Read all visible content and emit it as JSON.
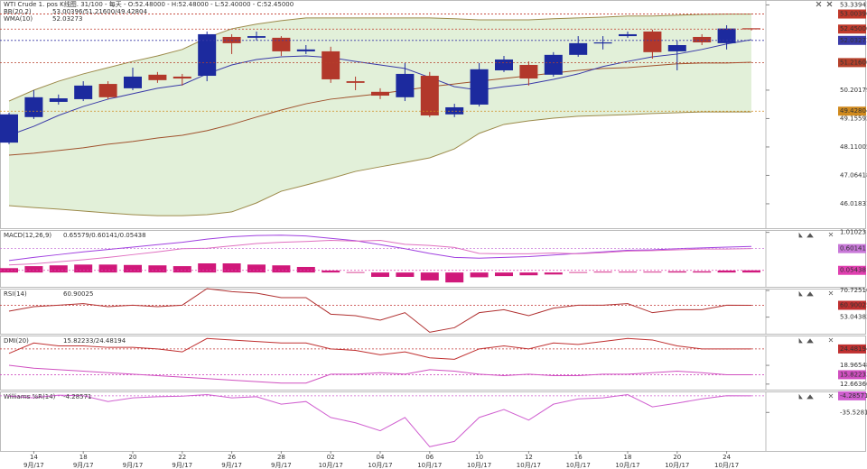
{
  "header": "WTI Crude 1. pos  K线图. 31/100 - 每天 - O:52.48000 - H:52.48000 - L:52.40000 - C:52.45000",
  "chart_data": [
    {
      "type": "candlestick",
      "categories": [
        null,
        "14",
        null,
        "18",
        null,
        "20",
        null,
        "22",
        null,
        "26",
        null,
        "28",
        null,
        "02",
        null,
        "04",
        null,
        "06",
        null,
        "10",
        null,
        "12",
        null,
        "16",
        null,
        "18",
        null,
        "20",
        null,
        "24",
        null
      ],
      "months": [
        null,
        "9月/17",
        null,
        "9月/17",
        null,
        "9月/17",
        null,
        "9月/17",
        null,
        "9月/17",
        null,
        "9月/17",
        null,
        "10月/17",
        null,
        "10月/17",
        null,
        "10月/17",
        null,
        "10月/17",
        null,
        "10月/17",
        null,
        "10月/17",
        null,
        "10月/17",
        null,
        "10月/17",
        null,
        "10月/17",
        null
      ],
      "open": [
        48.27,
        49.21,
        49.77,
        49.87,
        50.43,
        50.27,
        50.77,
        50.7,
        50.73,
        52.16,
        52.13,
        52.13,
        51.63,
        51.63,
        50.53,
        50.14,
        49.94,
        50.73,
        49.31,
        49.67,
        50.93,
        51.13,
        50.77,
        51.5,
        51.93,
        52.19,
        52.36,
        51.63,
        52.16,
        51.93,
        52.48
      ],
      "high": [
        49.37,
        50.2,
        50.04,
        50.53,
        50.53,
        51.03,
        50.87,
        50.8,
        52.36,
        52.26,
        52.36,
        52.19,
        51.86,
        51.8,
        50.7,
        50.27,
        51.2,
        50.87,
        49.7,
        51.2,
        51.46,
        51.26,
        51.6,
        52.19,
        52.19,
        52.36,
        52.43,
        52.03,
        52.26,
        52.59,
        52.48
      ],
      "low": [
        48.21,
        49.14,
        49.67,
        49.8,
        49.87,
        50.2,
        50.47,
        50.37,
        50.53,
        51.53,
        52.03,
        51.46,
        51.53,
        50.47,
        50.2,
        49.87,
        49.8,
        49.21,
        49.21,
        49.6,
        50.87,
        50.37,
        50.7,
        51.43,
        51.7,
        52.13,
        51.36,
        50.93,
        51.86,
        51.7,
        52.4
      ],
      "close": [
        49.31,
        49.94,
        49.9,
        50.37,
        49.94,
        50.7,
        50.57,
        50.63,
        52.26,
        51.93,
        52.19,
        51.63,
        51.7,
        50.6,
        50.47,
        50.0,
        50.8,
        49.27,
        49.57,
        50.97,
        51.33,
        50.63,
        51.5,
        51.93,
        51.96,
        52.26,
        51.6,
        51.86,
        51.96,
        52.47,
        52.45
      ],
      "up_color": "#1c2a9e",
      "down_color": "#b2382b",
      "ylim": [
        45.12,
        53.52
      ],
      "yticks": [
        53.33941,
        50.20179,
        49.15592,
        48.11005,
        47.06418,
        46.01831
      ],
      "indicators": [
        {
          "name": "BB(20,2)",
          "readout": "53.00396/51.21600/49.42804",
          "color": "#c07a20",
          "fill": "#e2f0d9",
          "lines": [
            {
              "color": "#9c8a4a",
              "values": [
                49.8,
                50.2,
                50.53,
                50.8,
                51.03,
                51.26,
                51.46,
                51.7,
                52.13,
                52.46,
                52.63,
                52.76,
                52.86,
                52.86,
                52.86,
                52.86,
                52.86,
                52.86,
                52.83,
                52.79,
                52.79,
                52.79,
                52.83,
                52.86,
                52.89,
                52.93,
                52.93,
                52.96,
                52.99,
                53.0,
                53.0
              ]
            },
            {
              "color": "#a0522d",
              "values": [
                47.81,
                47.88,
                47.98,
                48.08,
                48.21,
                48.31,
                48.44,
                48.54,
                48.71,
                48.94,
                49.21,
                49.47,
                49.7,
                49.87,
                49.97,
                50.07,
                50.2,
                50.33,
                50.43,
                50.53,
                50.63,
                50.73,
                50.83,
                50.93,
                51.0,
                51.03,
                51.1,
                51.17,
                51.2,
                51.2,
                51.23
              ]
            },
            {
              "color": "#9c8a4a",
              "values": [
                45.95,
                45.88,
                45.82,
                45.75,
                45.68,
                45.62,
                45.58,
                45.58,
                45.62,
                45.72,
                46.05,
                46.48,
                46.71,
                46.95,
                47.21,
                47.38,
                47.54,
                47.71,
                48.04,
                48.61,
                48.94,
                49.07,
                49.17,
                49.24,
                49.27,
                49.3,
                49.34,
                49.37,
                49.4,
                49.4,
                49.4
              ]
            }
          ]
        },
        {
          "name": "WMA(10)",
          "readout": "52.03273",
          "color": "#7a3ab0",
          "lines": [
            {
              "color": "#3a3aa8",
              "values": [
                48.54,
                48.87,
                49.27,
                49.6,
                49.87,
                50.07,
                50.27,
                50.4,
                50.8,
                51.13,
                51.33,
                51.43,
                51.46,
                51.4,
                51.26,
                51.13,
                51.0,
                50.67,
                50.33,
                50.2,
                50.33,
                50.43,
                50.6,
                50.8,
                51.07,
                51.26,
                51.43,
                51.53,
                51.7,
                51.9,
                52.06
              ]
            }
          ]
        }
      ],
      "tags": [
        {
          "value": 53.00396,
          "label": "53.00396",
          "color": "#c0392b"
        },
        {
          "value": 52.45,
          "label": "52.45000",
          "color": "#c0392b"
        },
        {
          "value": 52.03273,
          "label": "52.03273",
          "color": "#3a3aa8"
        },
        {
          "value": 51.216,
          "label": "51.21600",
          "color": "#b5402a"
        },
        {
          "value": 49.42804,
          "label": "49.42804",
          "color": "#d08a1e"
        }
      ]
    },
    {
      "type": "macd",
      "ylim": [
        -0.36,
        1.07
      ],
      "yticks": [
        1.01023
      ],
      "indicators": [
        {
          "name": "MACD(12,26,9)",
          "readout": "0.65579/0.60141/0.05438",
          "color": "#d040c0",
          "bars": {
            "color": "#d0187a",
            "values": [
              0.11,
              0.16,
              0.18,
              0.2,
              0.2,
              0.19,
              0.18,
              0.16,
              0.23,
              0.23,
              0.2,
              0.18,
              0.14,
              0.05,
              0.01,
              -0.11,
              -0.11,
              -0.2,
              -0.25,
              -0.12,
              -0.09,
              -0.07,
              -0.05,
              0.01,
              0.02,
              0.02,
              0.02,
              0.03,
              0.03,
              0.05,
              0.05438
            ]
          },
          "lines": [
            {
              "color": "#a040e0",
              "values": [
                0.3,
                0.38,
                0.45,
                0.52,
                0.58,
                0.64,
                0.7,
                0.76,
                0.84,
                0.9,
                0.93,
                0.94,
                0.92,
                0.86,
                0.8,
                0.7,
                0.6,
                0.48,
                0.38,
                0.36,
                0.38,
                0.4,
                0.44,
                0.48,
                0.52,
                0.56,
                0.57,
                0.6,
                0.62,
                0.64,
                0.65579
              ]
            },
            {
              "color": "#e070c0",
              "values": [
                0.19,
                0.22,
                0.27,
                0.32,
                0.38,
                0.45,
                0.52,
                0.6,
                0.61,
                0.67,
                0.73,
                0.76,
                0.78,
                0.81,
                0.79,
                0.81,
                0.71,
                0.68,
                0.63,
                0.48,
                0.47,
                0.47,
                0.49,
                0.47,
                0.5,
                0.54,
                0.55,
                0.57,
                0.59,
                0.59,
                0.60141
              ]
            }
          ]
        }
      ],
      "tags": [
        {
          "value": 0.60141,
          "label": "0.60141",
          "color": "#c878d8"
        },
        {
          "value": 0.05438,
          "label": "0.05438",
          "color": "#e040b0"
        }
      ]
    },
    {
      "type": "line",
      "ylim": [
        42,
        72
      ],
      "yticks": [
        {
          "value": 70.7251,
          "label": "70.72510"
        },
        53.04383
      ],
      "indicators": [
        {
          "name": "RSI(14)",
          "readout": "60.90025",
          "color": "#c03030",
          "lines": [
            {
              "color": "#b03030",
              "values": [
                57,
                60,
                61,
                62,
                60,
                61,
                60,
                61,
                72,
                70,
                69,
                66,
                66,
                55,
                54,
                51,
                56,
                43,
                46,
                56,
                58,
                54,
                59,
                61,
                61,
                62,
                56,
                58,
                58,
                61,
                60.90025
              ]
            }
          ]
        }
      ],
      "tags": [
        {
          "value": 60.90025,
          "label": "60.90025",
          "color": "#c03030"
        }
      ]
    },
    {
      "type": "line",
      "ylim": [
        10.8,
        29.0
      ],
      "yticks": [
        18.96548,
        12.66366
      ],
      "indicators": [
        {
          "name": "DMI(20)",
          "readout": "15.82233/24.48194",
          "color": "#d050c0",
          "lines": [
            {
              "color": "#c03030",
              "values": [
                23,
                26.5,
                25.5,
                25.5,
                25,
                25,
                24.5,
                23.5,
                28,
                27.5,
                27,
                26.5,
                26.5,
                24.5,
                24,
                22.5,
                23.5,
                21.5,
                21,
                24.5,
                25.5,
                24.5,
                26.5,
                26,
                27,
                28,
                27.5,
                25.5,
                24.5,
                24.5,
                24.48194
              ]
            },
            {
              "color": "#d050c0",
              "values": [
                19,
                18,
                17.5,
                17,
                16.5,
                16,
                15.5,
                15,
                14.5,
                14,
                13.5,
                13,
                13,
                16,
                16,
                16.5,
                16,
                17.5,
                17,
                16,
                15.5,
                16,
                15.5,
                15.5,
                16,
                16,
                16.5,
                17,
                16.5,
                15.8,
                15.82233
              ]
            }
          ]
        }
      ],
      "tags": [
        {
          "value": 24.48194,
          "label": "24.48194",
          "color": "#c03030"
        },
        {
          "value": 15.82233,
          "label": "15.82233",
          "color": "#d050c0"
        }
      ]
    },
    {
      "type": "line",
      "ylim": [
        -108,
        4
      ],
      "yticks": [
        {
          "value": -35.5281,
          "label": "-35.52810"
        }
      ],
      "indicators": [
        {
          "name": "Williams %R(14)",
          "readout": "-4.28571",
          "color": "#d060d0",
          "lines": [
            {
              "color": "#d060d0",
              "values": [
                -5,
                -8,
                -3,
                -4,
                -15,
                -8,
                -6,
                -5,
                -2,
                -8,
                -6,
                -20,
                -15,
                -45,
                -55,
                -70,
                -45,
                -100,
                -90,
                -45,
                -30,
                -50,
                -20,
                -10,
                -8,
                -2,
                -25,
                -18,
                -10,
                -4,
                -4.28571
              ]
            }
          ]
        }
      ],
      "tags": [
        {
          "value": -4.28571,
          "label": "-4.28571",
          "color": "#d060d0"
        }
      ]
    }
  ]
}
